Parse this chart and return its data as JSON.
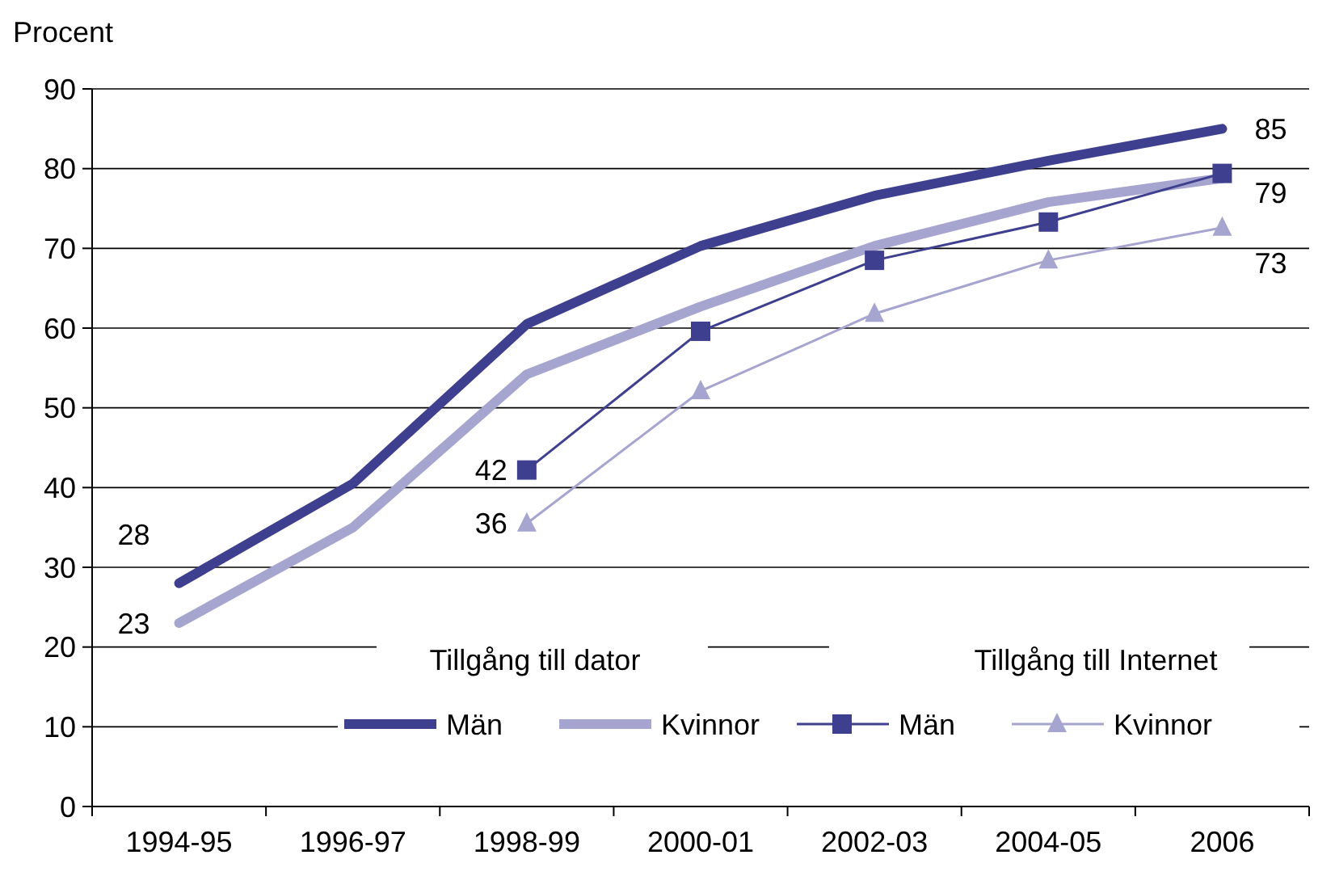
{
  "chart_data": {
    "type": "line",
    "ylabel": "Procent",
    "categories": [
      "1994-95",
      "1996-97",
      "1998-99",
      "2000-01",
      "2002-03",
      "2004-05",
      "2006"
    ],
    "ylim": [
      0,
      90
    ],
    "yticks": [
      0,
      10,
      20,
      30,
      40,
      50,
      60,
      70,
      80,
      90
    ],
    "grid": "y",
    "legend": "bottom right",
    "annotations": [
      "Tillgång till dator",
      "Tillgång till Internet"
    ],
    "series": [
      {
        "name": "Män",
        "color": "#3f3f8f",
        "marker": "none",
        "values": [
          28,
          40.5,
          60.5,
          70.3,
          76.6,
          81,
          85
        ],
        "value_labels": [
          "28",
          null,
          null,
          null,
          null,
          null,
          "85"
        ]
      },
      {
        "name": "Kvinnor",
        "color": "#a5a5d0",
        "marker": "none",
        "values": [
          23,
          35,
          54.2,
          62.7,
          70.3,
          75.8,
          78.8
        ],
        "value_labels": [
          "23",
          null,
          null,
          null,
          null,
          null,
          null
        ]
      },
      {
        "name": "Män",
        "color": "#3f3f8f",
        "marker": "square",
        "values": [
          null,
          null,
          42.2,
          59.6,
          68.5,
          73.3,
          79.4
        ],
        "value_labels": [
          null,
          null,
          "42",
          null,
          null,
          null,
          "79"
        ]
      },
      {
        "name": "Kvinnor",
        "color": "#a5a5d0",
        "marker": "triangle",
        "values": [
          null,
          null,
          35.5,
          52.1,
          61.8,
          68.5,
          72.6
        ],
        "value_labels": [
          null,
          null,
          "36",
          null,
          null,
          null,
          "73"
        ]
      }
    ]
  }
}
